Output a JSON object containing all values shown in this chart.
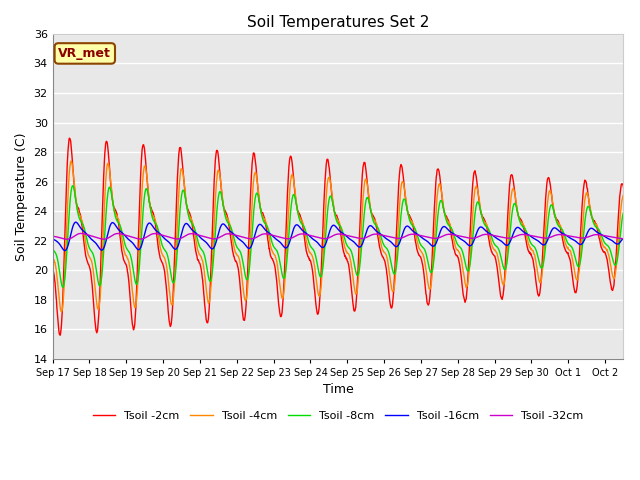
{
  "title": "Soil Temperatures Set 2",
  "xlabel": "Time",
  "ylabel": "Soil Temperature (C)",
  "ylim": [
    14,
    36
  ],
  "yticks": [
    14,
    16,
    18,
    20,
    22,
    24,
    26,
    28,
    30,
    32,
    34,
    36
  ],
  "xlim_days": [
    0,
    15.5
  ],
  "x_tick_labels": [
    "Sep 17",
    "Sep 18",
    "Sep 19",
    "Sep 20",
    "Sep 21",
    "Sep 22",
    "Sep 23",
    "Sep 24",
    "Sep 25",
    "Sep 26",
    "Sep 27",
    "Sep 28",
    "Sep 29",
    "Sep 30",
    "Oct 1",
    "Oct 2"
  ],
  "x_tick_positions": [
    0,
    1,
    2,
    3,
    4,
    5,
    6,
    7,
    8,
    9,
    10,
    11,
    12,
    13,
    14,
    15
  ],
  "annotation_text": "VR_met",
  "colors": {
    "Tsoil_2cm": "#ff0000",
    "Tsoil_4cm": "#ff8800",
    "Tsoil_8cm": "#00dd00",
    "Tsoil_16cm": "#0000ff",
    "Tsoil_32cm": "#cc00cc"
  },
  "legend_labels": [
    "Tsoil -2cm",
    "Tsoil -4cm",
    "Tsoil -8cm",
    "Tsoil -16cm",
    "Tsoil -32cm"
  ],
  "bg_color": "#e8e8e8",
  "fig_bg": "#ffffff",
  "grid_color": "#ffffff",
  "linewidth": 1.0
}
